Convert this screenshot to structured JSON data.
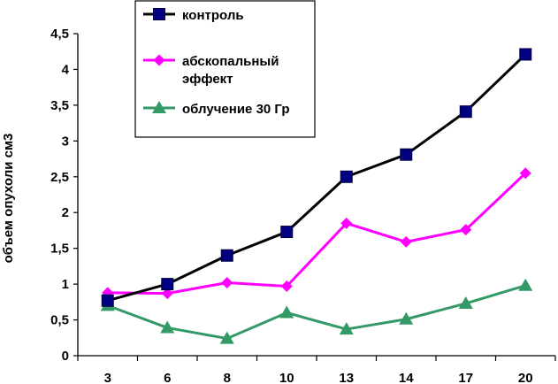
{
  "chart_data": {
    "type": "line",
    "title": "",
    "xlabel": "",
    "ylabel": "объем опухоли см3",
    "categories": [
      "3",
      "6",
      "8",
      "10",
      "13",
      "14",
      "17",
      "20"
    ],
    "ylim": [
      0,
      4.5
    ],
    "yticks": [
      "0",
      "0,5",
      "1",
      "1,5",
      "2",
      "2,5",
      "3",
      "3,5",
      "4",
      "4,5"
    ],
    "grid": false,
    "legend_position": "top-left",
    "series": [
      {
        "name": "контроль",
        "legend_lines": [
          "контроль"
        ],
        "color": "#000000",
        "marker_color": "#000080",
        "marker": "square",
        "values": [
          0.77,
          1.0,
          1.4,
          1.73,
          2.5,
          2.81,
          3.41,
          4.21
        ]
      },
      {
        "name": "абскопальный эффект",
        "legend_lines": [
          "абскопальный",
          "эффект"
        ],
        "color": "#ff00ff",
        "marker_color": "#ff00ff",
        "marker": "diamond",
        "values": [
          0.88,
          0.87,
          1.02,
          0.97,
          1.85,
          1.59,
          1.76,
          2.55
        ]
      },
      {
        "name": "облучение 30 Гр",
        "legend_lines": [
          "облучение 30 Гр"
        ],
        "color": "#339966",
        "marker_color": "#339966",
        "marker": "triangle",
        "values": [
          0.7,
          0.39,
          0.24,
          0.6,
          0.37,
          0.51,
          0.73,
          0.98
        ]
      }
    ]
  }
}
